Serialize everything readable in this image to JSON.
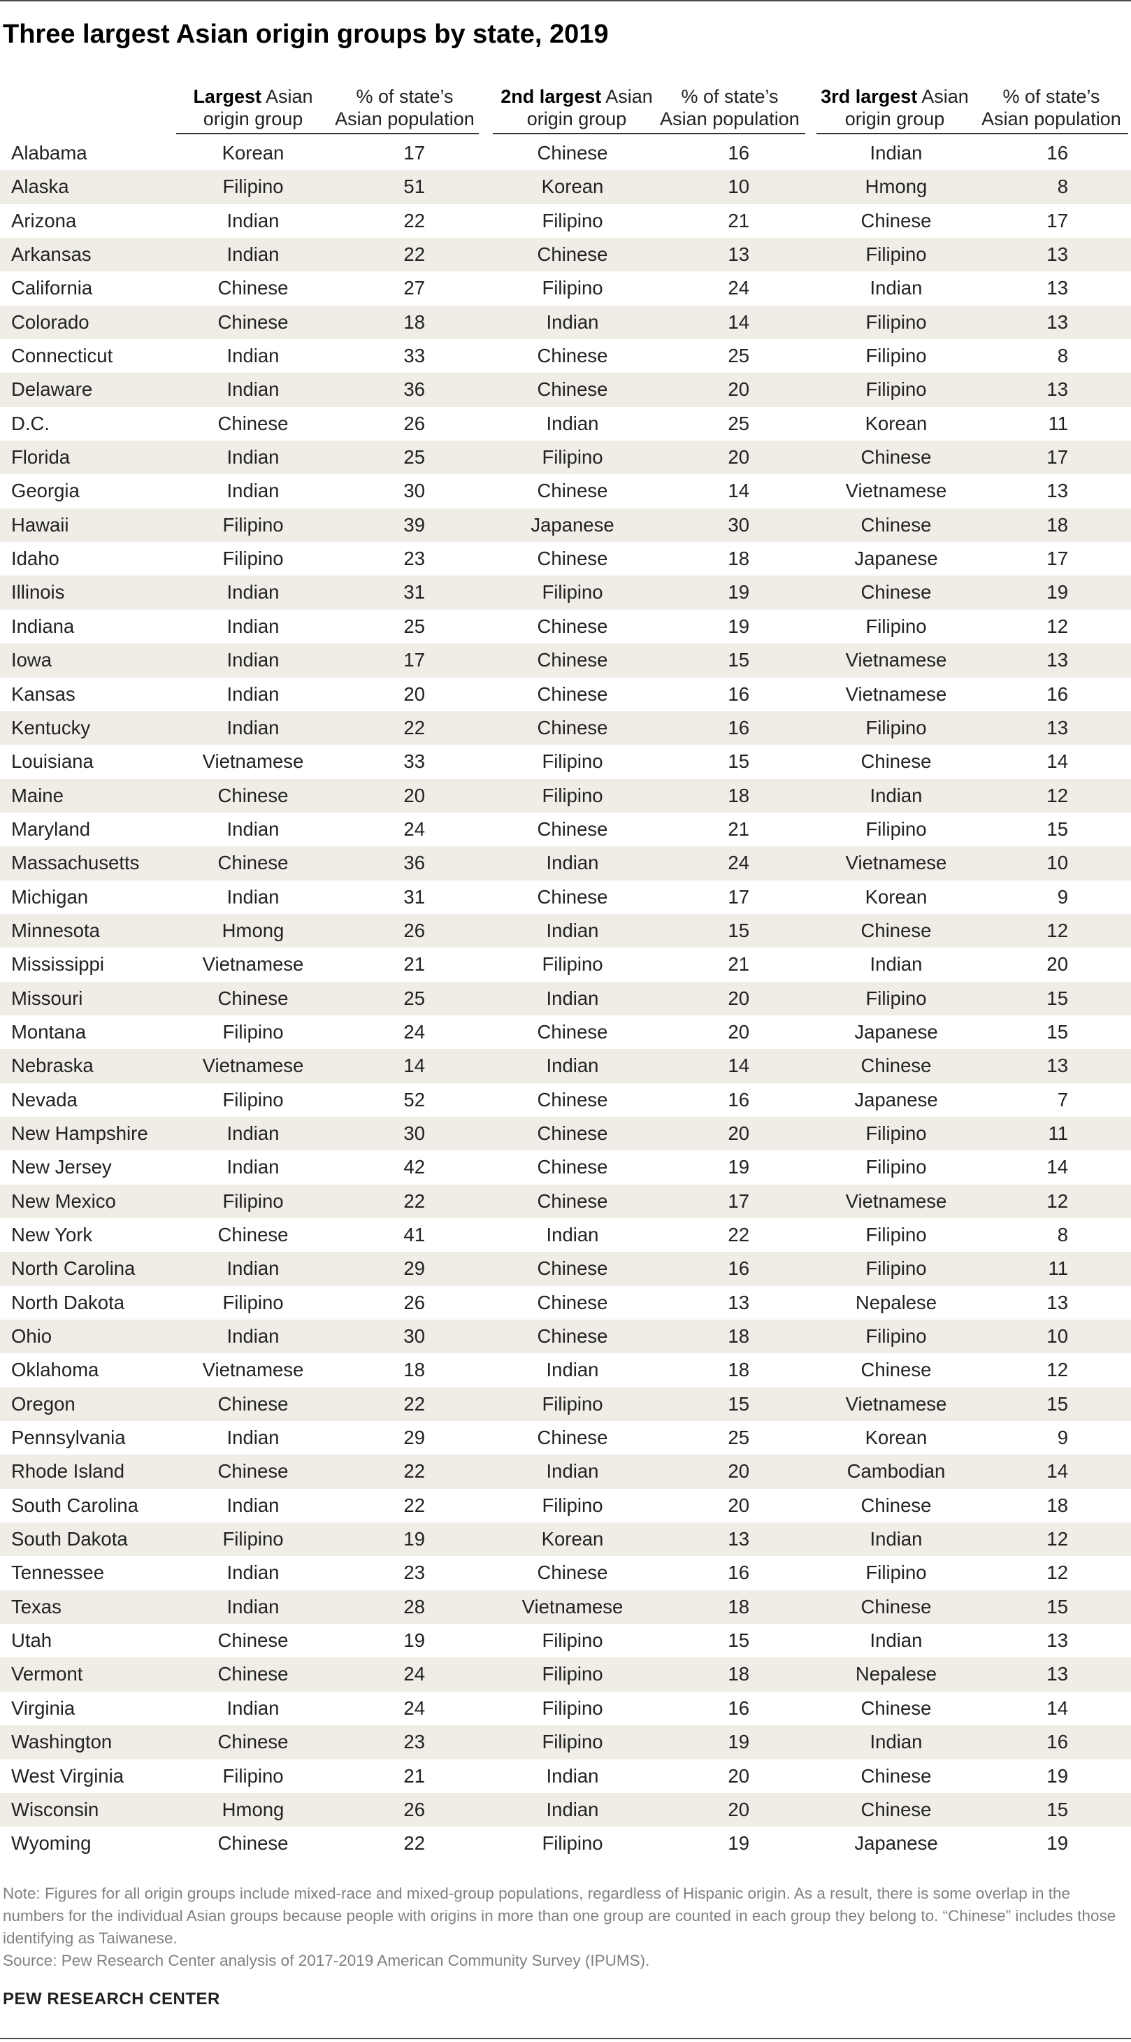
{
  "title": "Three largest Asian origin groups by state, 2019",
  "chart_data": {
    "type": "table",
    "title": "Three largest Asian origin groups by state, 2019",
    "columns": [
      {
        "bold": "Largest",
        "rest": " Asian",
        "line2": "origin group"
      },
      {
        "bold": "",
        "rest": "% of state’s",
        "line2": "Asian population"
      },
      {
        "bold": "2nd largest",
        "rest": " Asian",
        "line2": "origin group"
      },
      {
        "bold": "",
        "rest": "% of state’s",
        "line2": "Asian population"
      },
      {
        "bold": "3rd largest",
        "rest": " Asian",
        "line2": "origin group"
      },
      {
        "bold": "",
        "rest": "% of state’s",
        "line2": "Asian population"
      }
    ],
    "rows": [
      {
        "state": "Alabama",
        "g1": "Korean",
        "p1": 17,
        "g2": "Chinese",
        "p2": 16,
        "g3": "Indian",
        "p3": 16
      },
      {
        "state": "Alaska",
        "g1": "Filipino",
        "p1": 51,
        "g2": "Korean",
        "p2": 10,
        "g3": "Hmong",
        "p3": 8
      },
      {
        "state": "Arizona",
        "g1": "Indian",
        "p1": 22,
        "g2": "Filipino",
        "p2": 21,
        "g3": "Chinese",
        "p3": 17
      },
      {
        "state": "Arkansas",
        "g1": "Indian",
        "p1": 22,
        "g2": "Chinese",
        "p2": 13,
        "g3": "Filipino",
        "p3": 13
      },
      {
        "state": "California",
        "g1": "Chinese",
        "p1": 27,
        "g2": "Filipino",
        "p2": 24,
        "g3": "Indian",
        "p3": 13
      },
      {
        "state": "Colorado",
        "g1": "Chinese",
        "p1": 18,
        "g2": "Indian",
        "p2": 14,
        "g3": "Filipino",
        "p3": 13
      },
      {
        "state": "Connecticut",
        "g1": "Indian",
        "p1": 33,
        "g2": "Chinese",
        "p2": 25,
        "g3": "Filipino",
        "p3": 8
      },
      {
        "state": "Delaware",
        "g1": "Indian",
        "p1": 36,
        "g2": "Chinese",
        "p2": 20,
        "g3": "Filipino",
        "p3": 13
      },
      {
        "state": "D.C.",
        "g1": "Chinese",
        "p1": 26,
        "g2": "Indian",
        "p2": 25,
        "g3": "Korean",
        "p3": 11
      },
      {
        "state": "Florida",
        "g1": "Indian",
        "p1": 25,
        "g2": "Filipino",
        "p2": 20,
        "g3": "Chinese",
        "p3": 17
      },
      {
        "state": "Georgia",
        "g1": "Indian",
        "p1": 30,
        "g2": "Chinese",
        "p2": 14,
        "g3": "Vietnamese",
        "p3": 13
      },
      {
        "state": "Hawaii",
        "g1": "Filipino",
        "p1": 39,
        "g2": "Japanese",
        "p2": 30,
        "g3": "Chinese",
        "p3": 18
      },
      {
        "state": "Idaho",
        "g1": "Filipino",
        "p1": 23,
        "g2": "Chinese",
        "p2": 18,
        "g3": "Japanese",
        "p3": 17
      },
      {
        "state": "Illinois",
        "g1": "Indian",
        "p1": 31,
        "g2": "Filipino",
        "p2": 19,
        "g3": "Chinese",
        "p3": 19
      },
      {
        "state": "Indiana",
        "g1": "Indian",
        "p1": 25,
        "g2": "Chinese",
        "p2": 19,
        "g3": "Filipino",
        "p3": 12
      },
      {
        "state": "Iowa",
        "g1": "Indian",
        "p1": 17,
        "g2": "Chinese",
        "p2": 15,
        "g3": "Vietnamese",
        "p3": 13
      },
      {
        "state": "Kansas",
        "g1": "Indian",
        "p1": 20,
        "g2": "Chinese",
        "p2": 16,
        "g3": "Vietnamese",
        "p3": 16
      },
      {
        "state": "Kentucky",
        "g1": "Indian",
        "p1": 22,
        "g2": "Chinese",
        "p2": 16,
        "g3": "Filipino",
        "p3": 13
      },
      {
        "state": "Louisiana",
        "g1": "Vietnamese",
        "p1": 33,
        "g2": "Filipino",
        "p2": 15,
        "g3": "Chinese",
        "p3": 14
      },
      {
        "state": "Maine",
        "g1": "Chinese",
        "p1": 20,
        "g2": "Filipino",
        "p2": 18,
        "g3": "Indian",
        "p3": 12
      },
      {
        "state": "Maryland",
        "g1": "Indian",
        "p1": 24,
        "g2": "Chinese",
        "p2": 21,
        "g3": "Filipino",
        "p3": 15
      },
      {
        "state": "Massachusetts",
        "g1": "Chinese",
        "p1": 36,
        "g2": "Indian",
        "p2": 24,
        "g3": "Vietnamese",
        "p3": 10
      },
      {
        "state": "Michigan",
        "g1": "Indian",
        "p1": 31,
        "g2": "Chinese",
        "p2": 17,
        "g3": "Korean",
        "p3": 9
      },
      {
        "state": "Minnesota",
        "g1": "Hmong",
        "p1": 26,
        "g2": "Indian",
        "p2": 15,
        "g3": "Chinese",
        "p3": 12
      },
      {
        "state": "Mississippi",
        "g1": "Vietnamese",
        "p1": 21,
        "g2": "Filipino",
        "p2": 21,
        "g3": "Indian",
        "p3": 20
      },
      {
        "state": "Missouri",
        "g1": "Chinese",
        "p1": 25,
        "g2": "Indian",
        "p2": 20,
        "g3": "Filipino",
        "p3": 15
      },
      {
        "state": "Montana",
        "g1": "Filipino",
        "p1": 24,
        "g2": "Chinese",
        "p2": 20,
        "g3": "Japanese",
        "p3": 15
      },
      {
        "state": "Nebraska",
        "g1": "Vietnamese",
        "p1": 14,
        "g2": "Indian",
        "p2": 14,
        "g3": "Chinese",
        "p3": 13
      },
      {
        "state": "Nevada",
        "g1": "Filipino",
        "p1": 52,
        "g2": "Chinese",
        "p2": 16,
        "g3": "Japanese",
        "p3": 7
      },
      {
        "state": "New Hampshire",
        "g1": "Indian",
        "p1": 30,
        "g2": "Chinese",
        "p2": 20,
        "g3": "Filipino",
        "p3": 11
      },
      {
        "state": "New Jersey",
        "g1": "Indian",
        "p1": 42,
        "g2": "Chinese",
        "p2": 19,
        "g3": "Filipino",
        "p3": 14
      },
      {
        "state": "New Mexico",
        "g1": "Filipino",
        "p1": 22,
        "g2": "Chinese",
        "p2": 17,
        "g3": "Vietnamese",
        "p3": 12
      },
      {
        "state": "New York",
        "g1": "Chinese",
        "p1": 41,
        "g2": "Indian",
        "p2": 22,
        "g3": "Filipino",
        "p3": 8
      },
      {
        "state": "North Carolina",
        "g1": "Indian",
        "p1": 29,
        "g2": "Chinese",
        "p2": 16,
        "g3": "Filipino",
        "p3": 11
      },
      {
        "state": "North Dakota",
        "g1": "Filipino",
        "p1": 26,
        "g2": "Chinese",
        "p2": 13,
        "g3": "Nepalese",
        "p3": 13
      },
      {
        "state": "Ohio",
        "g1": "Indian",
        "p1": 30,
        "g2": "Chinese",
        "p2": 18,
        "g3": "Filipino",
        "p3": 10
      },
      {
        "state": "Oklahoma",
        "g1": "Vietnamese",
        "p1": 18,
        "g2": "Indian",
        "p2": 18,
        "g3": "Chinese",
        "p3": 12
      },
      {
        "state": "Oregon",
        "g1": "Chinese",
        "p1": 22,
        "g2": "Filipino",
        "p2": 15,
        "g3": "Vietnamese",
        "p3": 15
      },
      {
        "state": "Pennsylvania",
        "g1": "Indian",
        "p1": 29,
        "g2": "Chinese",
        "p2": 25,
        "g3": "Korean",
        "p3": 9
      },
      {
        "state": "Rhode Island",
        "g1": "Chinese",
        "p1": 22,
        "g2": "Indian",
        "p2": 20,
        "g3": "Cambodian",
        "p3": 14
      },
      {
        "state": "South Carolina",
        "g1": "Indian",
        "p1": 22,
        "g2": "Filipino",
        "p2": 20,
        "g3": "Chinese",
        "p3": 18
      },
      {
        "state": "South Dakota",
        "g1": "Filipino",
        "p1": 19,
        "g2": "Korean",
        "p2": 13,
        "g3": "Indian",
        "p3": 12
      },
      {
        "state": "Tennessee",
        "g1": "Indian",
        "p1": 23,
        "g2": "Chinese",
        "p2": 16,
        "g3": "Filipino",
        "p3": 12
      },
      {
        "state": "Texas",
        "g1": "Indian",
        "p1": 28,
        "g2": "Vietnamese",
        "p2": 18,
        "g3": "Chinese",
        "p3": 15
      },
      {
        "state": "Utah",
        "g1": "Chinese",
        "p1": 19,
        "g2": "Filipino",
        "p2": 15,
        "g3": "Indian",
        "p3": 13
      },
      {
        "state": "Vermont",
        "g1": "Chinese",
        "p1": 24,
        "g2": "Filipino",
        "p2": 18,
        "g3": "Nepalese",
        "p3": 13
      },
      {
        "state": "Virginia",
        "g1": "Indian",
        "p1": 24,
        "g2": "Filipino",
        "p2": 16,
        "g3": "Chinese",
        "p3": 14
      },
      {
        "state": "Washington",
        "g1": "Chinese",
        "p1": 23,
        "g2": "Filipino",
        "p2": 19,
        "g3": "Indian",
        "p3": 16
      },
      {
        "state": "West Virginia",
        "g1": "Filipino",
        "p1": 21,
        "g2": "Indian",
        "p2": 20,
        "g3": "Chinese",
        "p3": 19
      },
      {
        "state": "Wisconsin",
        "g1": "Hmong",
        "p1": 26,
        "g2": "Indian",
        "p2": 20,
        "g3": "Chinese",
        "p3": 15
      },
      {
        "state": "Wyoming",
        "g1": "Chinese",
        "p1": 22,
        "g2": "Filipino",
        "p2": 19,
        "g3": "Japanese",
        "p3": 19
      }
    ]
  },
  "note": "Note: Figures for all origin groups include mixed-race and mixed-group populations, regardless of Hispanic origin. As a result, there is some overlap in the numbers for the individual Asian groups because people with origins in more than one group are counted in each group they belong to. “Chinese” includes those identifying as Taiwanese.",
  "source": "Source: Pew Research Center analysis of 2017-2019 American Community Survey (IPUMS).",
  "brand": "PEW RESEARCH CENTER",
  "colors": {
    "stripe": "#efede6",
    "text": "#222222",
    "note": "#808080"
  }
}
